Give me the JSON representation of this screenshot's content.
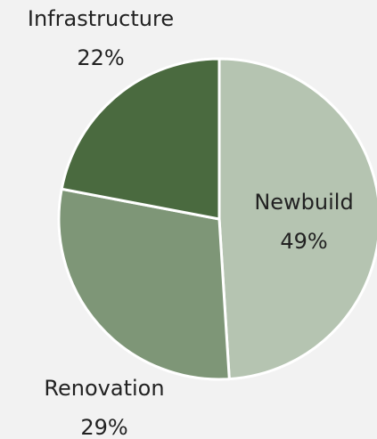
{
  "chart_data": {
    "type": "pie",
    "categories": [
      "Newbuild",
      "Renovation",
      "Infrastructure"
    ],
    "values": [
      49,
      29,
      22
    ],
    "value_labels": [
      "49%",
      "29%",
      "22%"
    ],
    "colors": [
      "#b5c4b1",
      "#7e9677",
      "#4a6a3f"
    ]
  }
}
